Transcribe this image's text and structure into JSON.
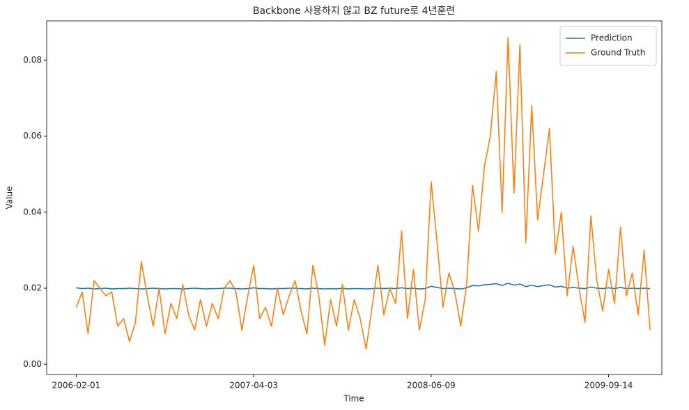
{
  "chart_data": {
    "type": "line",
    "title": "Backbone 사용하지 않고 BZ future로 4년훈련",
    "x_label": "Time",
    "y_label": "Value",
    "x": [
      0,
      10,
      20,
      30,
      40,
      50,
      60,
      70,
      80,
      90,
      100,
      110,
      120,
      130,
      140,
      150,
      160,
      170,
      180,
      190,
      200,
      210,
      220,
      230,
      240,
      250,
      260,
      270,
      280,
      290,
      300,
      310,
      320,
      330,
      340,
      350,
      360,
      370,
      380,
      390,
      400,
      410,
      420,
      430,
      440,
      450,
      460,
      470,
      480,
      490,
      500,
      510,
      520,
      530,
      540,
      550,
      560,
      570,
      580,
      590,
      600,
      610,
      620,
      630,
      640,
      650,
      660,
      670,
      680,
      690,
      700,
      710,
      720,
      730,
      740,
      750,
      760,
      770,
      780,
      790,
      800,
      810,
      820,
      830,
      840,
      850,
      860,
      870,
      880,
      890,
      900,
      910,
      920,
      930,
      940,
      950,
      960,
      970
    ],
    "series": [
      {
        "name": "Prediction",
        "color": "#1f77b4",
        "values": [
          0.0201,
          0.0199,
          0.02,
          0.0198,
          0.0199,
          0.02,
          0.0198,
          0.0199,
          0.0199,
          0.02,
          0.0199,
          0.0198,
          0.0199,
          0.02,
          0.0199,
          0.0198,
          0.0199,
          0.0199,
          0.0198,
          0.0199,
          0.02,
          0.0199,
          0.0198,
          0.0199,
          0.0199,
          0.02,
          0.02,
          0.0199,
          0.0198,
          0.0199,
          0.0201,
          0.0199,
          0.0199,
          0.0198,
          0.0199,
          0.0199,
          0.02,
          0.02,
          0.0199,
          0.0198,
          0.02,
          0.0199,
          0.0198,
          0.0199,
          0.0198,
          0.02,
          0.0198,
          0.0199,
          0.0199,
          0.0198,
          0.0199,
          0.02,
          0.0199,
          0.02,
          0.0199,
          0.0201,
          0.0199,
          0.02,
          0.0198,
          0.0199,
          0.0205,
          0.0202,
          0.0199,
          0.02,
          0.0199,
          0.0198,
          0.0201,
          0.0207,
          0.0206,
          0.0209,
          0.021,
          0.0212,
          0.0207,
          0.0213,
          0.0208,
          0.0211,
          0.0204,
          0.0208,
          0.0204,
          0.0207,
          0.0209,
          0.0203,
          0.0205,
          0.02,
          0.0202,
          0.02,
          0.0199,
          0.0203,
          0.02,
          0.0199,
          0.0201,
          0.0199,
          0.0202,
          0.0199,
          0.02,
          0.0199,
          0.02,
          0.0199
        ]
      },
      {
        "name": "Ground Truth",
        "color": "#ff7f0e",
        "values": [
          0.015,
          0.019,
          0.008,
          0.022,
          0.02,
          0.018,
          0.019,
          0.01,
          0.012,
          0.006,
          0.011,
          0.027,
          0.018,
          0.01,
          0.02,
          0.008,
          0.016,
          0.012,
          0.021,
          0.013,
          0.009,
          0.017,
          0.01,
          0.016,
          0.012,
          0.02,
          0.022,
          0.019,
          0.009,
          0.018,
          0.026,
          0.012,
          0.015,
          0.01,
          0.02,
          0.013,
          0.018,
          0.022,
          0.014,
          0.008,
          0.026,
          0.018,
          0.005,
          0.017,
          0.01,
          0.021,
          0.009,
          0.017,
          0.012,
          0.004,
          0.015,
          0.026,
          0.013,
          0.02,
          0.016,
          0.035,
          0.012,
          0.025,
          0.009,
          0.017,
          0.048,
          0.032,
          0.015,
          0.024,
          0.019,
          0.01,
          0.021,
          0.047,
          0.035,
          0.052,
          0.06,
          0.077,
          0.04,
          0.086,
          0.045,
          0.084,
          0.032,
          0.068,
          0.038,
          0.05,
          0.062,
          0.029,
          0.04,
          0.018,
          0.031,
          0.02,
          0.011,
          0.039,
          0.022,
          0.014,
          0.025,
          0.016,
          0.036,
          0.018,
          0.024,
          0.013,
          0.03,
          0.009
        ]
      }
    ],
    "xlim": [
      -50,
      990
    ],
    "xticks": [
      {
        "value": 0,
        "label": "2006-02-01"
      },
      {
        "value": 300,
        "label": "2007-04-03"
      },
      {
        "value": 600,
        "label": "2008-06-09"
      },
      {
        "value": 900,
        "label": "2009-09-14"
      }
    ],
    "ylim": [
      -0.0027,
      0.0903
    ],
    "yticks": [
      {
        "value": 0,
        "label": "0.00"
      },
      0.02,
      0.04,
      0.06,
      0.08
    ],
    "grid": false,
    "legend": "upper right"
  }
}
